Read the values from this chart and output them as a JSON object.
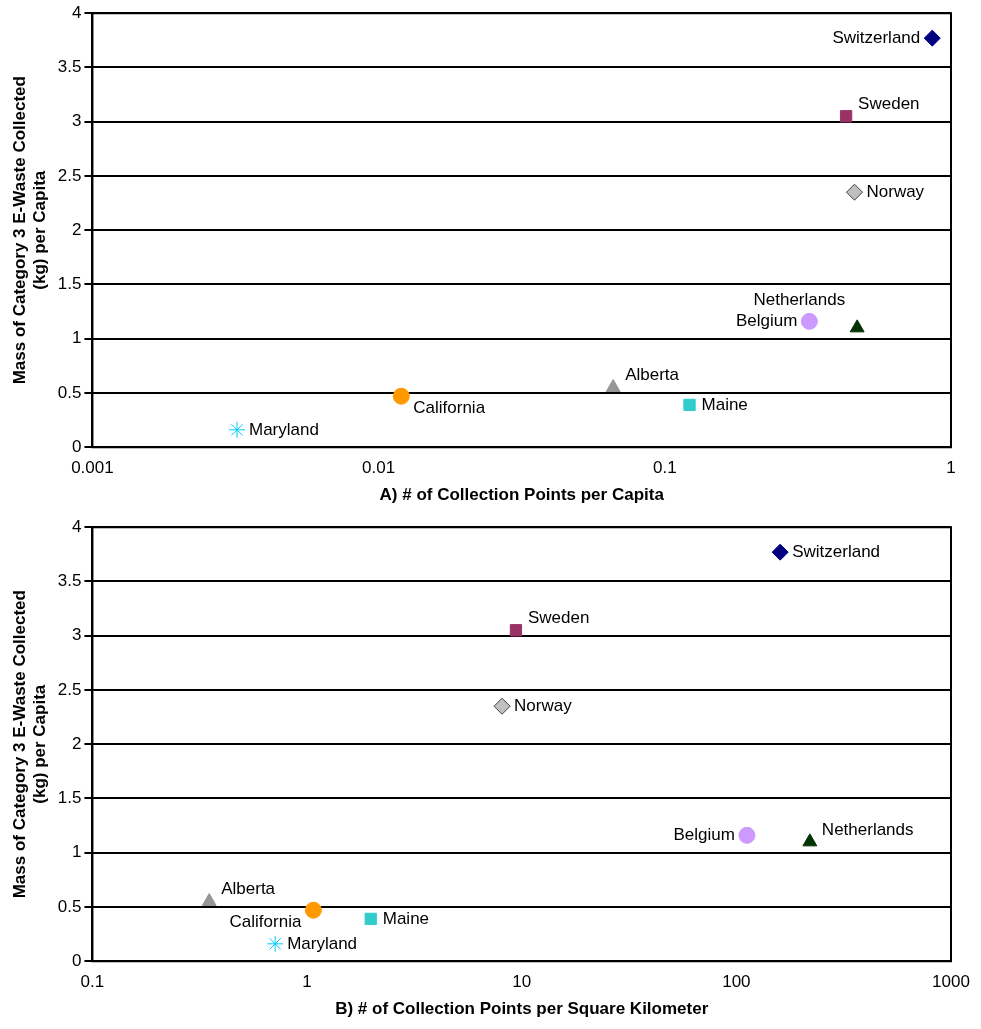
{
  "chart_data": [
    {
      "type": "scatter",
      "xlabel": "A) # of Collection Points per Capita",
      "ylabel": "Mass of Category 3 E-Waste Collected (kg) per Capita",
      "log": "x",
      "grid": "y",
      "legend": false,
      "xlim": [
        0.001,
        1
      ],
      "xticks": [
        0.001,
        0.01,
        0.1,
        1
      ],
      "ylim": [
        0,
        4
      ],
      "yticks": [
        0,
        0.5,
        1,
        1.5,
        2,
        2.5,
        3,
        3.5,
        4
      ],
      "series": [
        {
          "name": "Switzerland",
          "color": "#000080",
          "marker": "diamond",
          "x": [
            0.86
          ],
          "values": [
            3.77
          ]
        },
        {
          "name": "Sweden",
          "color": "#993366",
          "marker": "square",
          "x": [
            0.43
          ],
          "values": [
            3.05
          ]
        },
        {
          "name": "Norway",
          "color": "#c0c0c0",
          "marker": "diamond",
          "x": [
            0.46
          ],
          "values": [
            2.35
          ]
        },
        {
          "name": "Belgium",
          "color": "#cc99ff",
          "marker": "circle",
          "x": [
            0.32
          ],
          "values": [
            1.16
          ]
        },
        {
          "name": "Netherlands",
          "color": "#003300",
          "marker": "triangle",
          "x": [
            0.47
          ],
          "values": [
            1.1
          ]
        },
        {
          "name": "Alberta",
          "color": "#969696",
          "marker": "triangle",
          "x": [
            0.066
          ],
          "values": [
            0.55
          ]
        },
        {
          "name": "California",
          "color": "#ff9900",
          "marker": "circle",
          "x": [
            0.012
          ],
          "values": [
            0.47
          ]
        },
        {
          "name": "Maine",
          "color": "#33cccc",
          "marker": "square",
          "x": [
            0.122
          ],
          "values": [
            0.39
          ]
        },
        {
          "name": "Maryland",
          "color": "#00ccff",
          "marker": "cross",
          "x": [
            0.0032
          ],
          "values": [
            0.16
          ]
        }
      ]
    },
    {
      "type": "scatter",
      "xlabel": "B) # of Collection Points per Square Kilometer",
      "ylabel": "Mass of Category 3 E-Waste Collected (kg) per Capita",
      "log": "x",
      "grid": "y",
      "legend": false,
      "xlim": [
        0.1,
        1000
      ],
      "xticks": [
        0.1,
        1,
        10,
        100,
        1000
      ],
      "ylim": [
        0,
        4
      ],
      "yticks": [
        0,
        0.5,
        1,
        1.5,
        2,
        2.5,
        3,
        3.5,
        4
      ],
      "series": [
        {
          "name": "Switzerland",
          "color": "#000080",
          "marker": "diamond",
          "x": [
            160
          ],
          "values": [
            3.77
          ]
        },
        {
          "name": "Sweden",
          "color": "#993366",
          "marker": "square",
          "x": [
            9.4
          ],
          "values": [
            3.05
          ]
        },
        {
          "name": "Norway",
          "color": "#c0c0c0",
          "marker": "diamond",
          "x": [
            8.1
          ],
          "values": [
            2.35
          ]
        },
        {
          "name": "Belgium",
          "color": "#cc99ff",
          "marker": "circle",
          "x": [
            112
          ],
          "values": [
            1.16
          ]
        },
        {
          "name": "Netherlands",
          "color": "#003300",
          "marker": "triangle",
          "x": [
            220
          ],
          "values": [
            1.1
          ]
        },
        {
          "name": "Alberta",
          "color": "#969696",
          "marker": "triangle",
          "x": [
            0.35
          ],
          "values": [
            0.55
          ]
        },
        {
          "name": "California",
          "color": "#ff9900",
          "marker": "circle",
          "x": [
            1.07
          ],
          "values": [
            0.47
          ]
        },
        {
          "name": "Maine",
          "color": "#33cccc",
          "marker": "square",
          "x": [
            1.98
          ],
          "values": [
            0.39
          ]
        },
        {
          "name": "Maryland",
          "color": "#00ccff",
          "marker": "cross",
          "x": [
            0.71
          ],
          "values": [
            0.16
          ]
        }
      ]
    }
  ]
}
